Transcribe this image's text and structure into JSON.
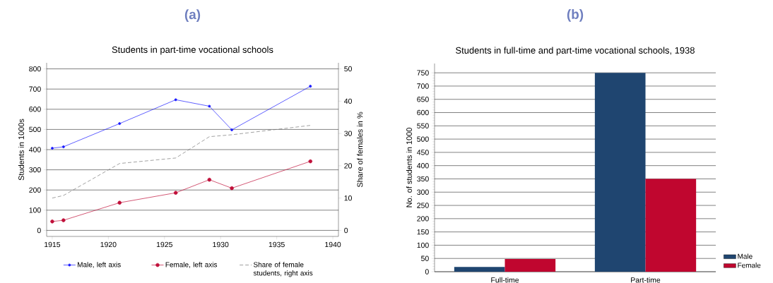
{
  "chart_data": [
    {
      "type": "line",
      "title": "Students in part-time vocational schools",
      "annotations": [
        "(a)"
      ],
      "ylabel": "Students in 1000s",
      "y2label": "Share of females in %",
      "x": [
        1915,
        1916,
        1921,
        1926,
        1929,
        1931,
        1938
      ],
      "series": [
        {
          "name": "Male, left axis",
          "color": "#1a1aff",
          "values": [
            407,
            414,
            529,
            647,
            615,
            498,
            714
          ],
          "marker": "circle",
          "line_style": "solid"
        },
        {
          "name": "Female, left axis",
          "color": "#c0103a",
          "values": [
            44,
            50,
            137,
            186,
            251,
            209,
            342
          ],
          "marker": "circle",
          "line_style": "solid"
        },
        {
          "name": "Share of female students, right axis",
          "color": "#777777",
          "values": [
            10.0,
            10.8,
            20.7,
            22.4,
            29.0,
            29.6,
            32.5
          ],
          "axis": "y2",
          "marker": "none",
          "line_style": "dashed"
        }
      ],
      "xlim": [
        1914.5,
        1940.5
      ],
      "xticks": [
        1915,
        1920,
        1925,
        1930,
        1935,
        1940
      ],
      "ylim": [
        -30,
        830
      ],
      "yticks": [
        0,
        100,
        200,
        300,
        400,
        500,
        600,
        700,
        800
      ],
      "y2lim": [
        -1.875,
        51.875
      ],
      "y2ticks": [
        0,
        10,
        20,
        30,
        40,
        50
      ],
      "grid": "y",
      "legend": "bottom"
    },
    {
      "type": "bar",
      "title": "Students in full-time and part-time vocational schools, 1938",
      "annotations": [
        "(b)"
      ],
      "ylabel": "No. of students in 1000",
      "categories": [
        "Full-time",
        "Part-time"
      ],
      "series": [
        {
          "name": "Male",
          "color": "#1f4570",
          "values": [
            18,
            750
          ]
        },
        {
          "name": "Female",
          "color": "#c0062f",
          "values": [
            48,
            350
          ]
        }
      ],
      "ylim": [
        0,
        785
      ],
      "yticks": [
        0,
        50,
        100,
        150,
        200,
        250,
        300,
        350,
        400,
        450,
        500,
        550,
        600,
        650,
        700,
        750
      ],
      "grid": "y",
      "legend": "right"
    }
  ]
}
